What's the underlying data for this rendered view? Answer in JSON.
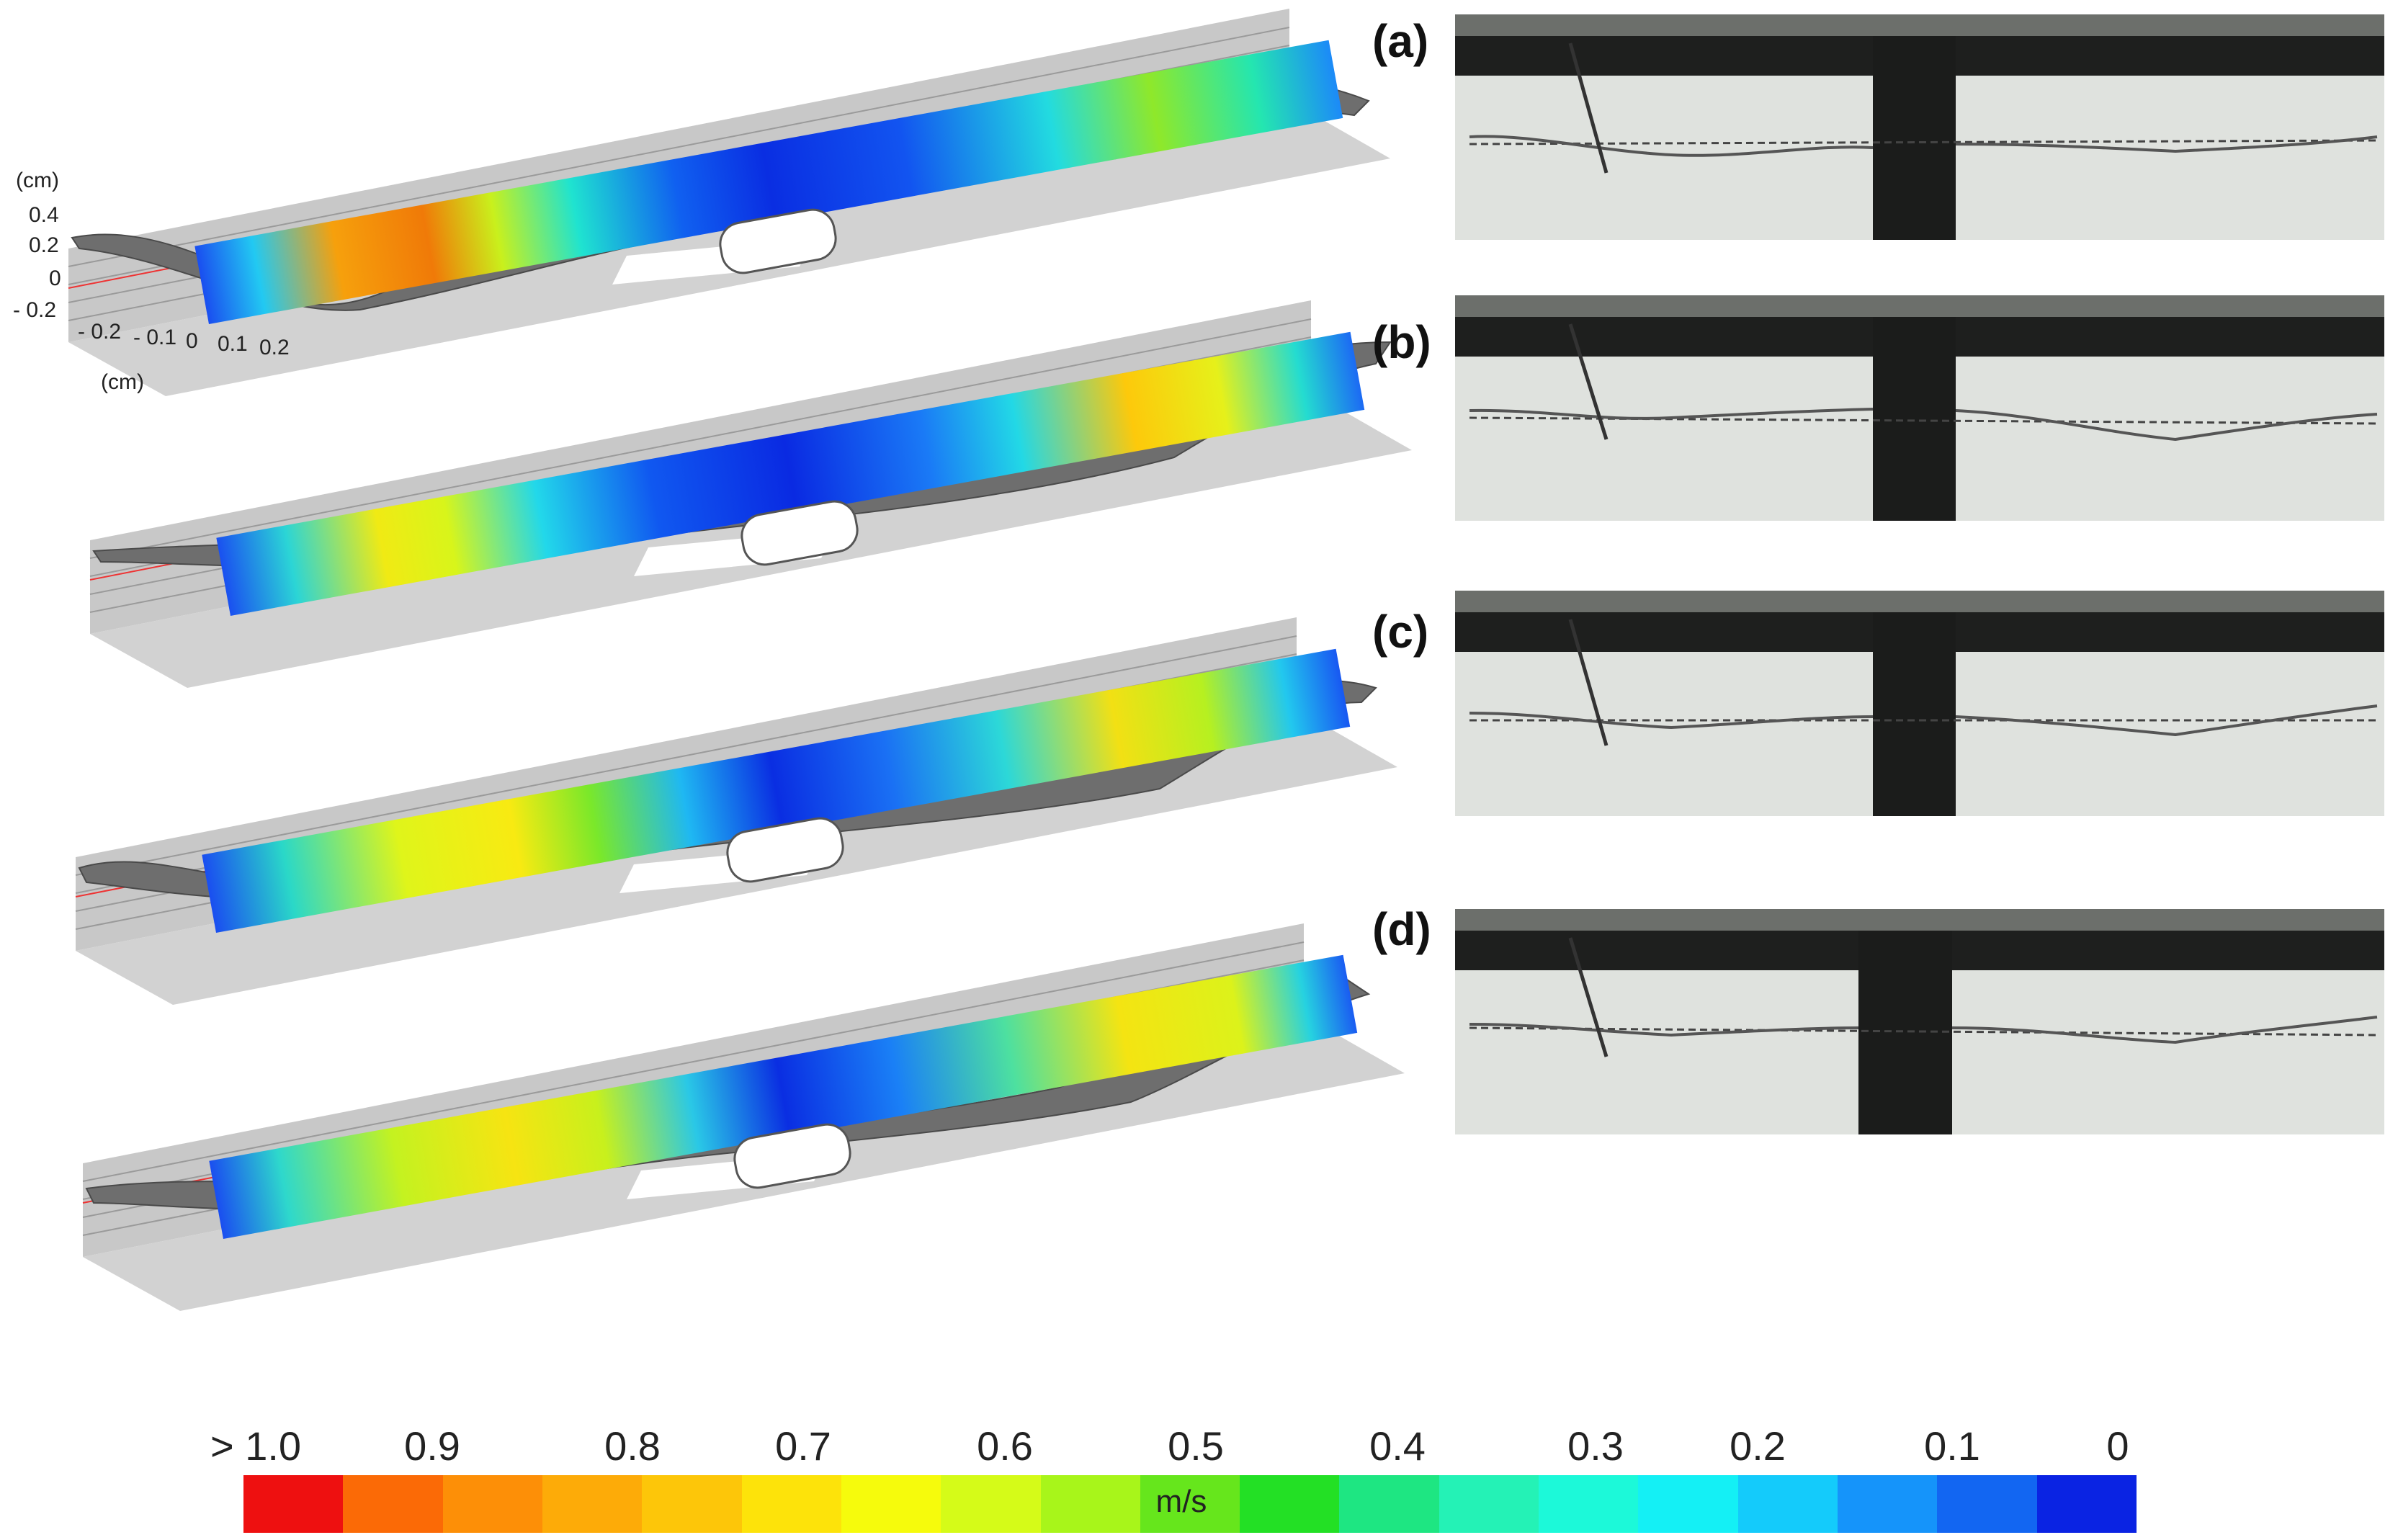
{
  "axes": {
    "z_unit": "(cm)",
    "z_ticks": [
      "0.4",
      "0.2",
      "0",
      "- 0.2"
    ],
    "y_ticks": [
      "- 0.2",
      "- 0.1",
      "0",
      "0.1",
      "0.2"
    ],
    "y_unit": "(cm)"
  },
  "panels": [
    {
      "label": "(a)",
      "speed_field": "flow-a"
    },
    {
      "label": "(b)",
      "speed_field": "flow-b"
    },
    {
      "label": "(c)",
      "speed_field": "flow-c"
    },
    {
      "label": "(d)",
      "speed_field": "flow-d"
    }
  ],
  "colorbar": {
    "unit": "m/s",
    "ticks": [
      "> 1.0",
      "0.9",
      "0.8",
      "0.7",
      "0.6",
      "0.5",
      "0.4",
      "0.3",
      "0.2",
      "0.1",
      "0"
    ],
    "colors": [
      "#ee1010",
      "#fb6a06",
      "#fd8f07",
      "#fdab08",
      "#fdc609",
      "#fde30a",
      "#f6fb0c",
      "#d5fb18",
      "#a8f51a",
      "#66e61c",
      "#23e025",
      "#1ee682",
      "#24f2b6",
      "#1cf9d9",
      "#14f0f5",
      "#14cbfb",
      "#1594fa",
      "#1266f2",
      "#0a23e3"
    ]
  }
}
